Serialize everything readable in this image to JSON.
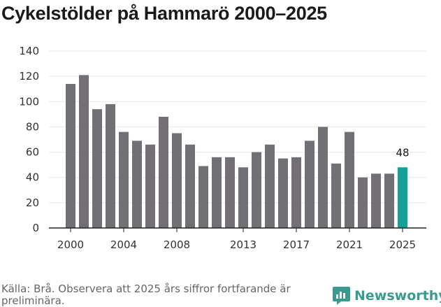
{
  "title": "Cykelstölder på Hammarö 2000–2025",
  "source": "Källa: Brå. Observera att 2025 års siffror fortfarande är preliminära.",
  "brand": {
    "name": "Newsworthy"
  },
  "colors": {
    "bar": "#727075",
    "highlight": "#14a197",
    "grid": "#e6e6e6",
    "axis": "#222222"
  },
  "chart_data": {
    "type": "bar",
    "title": "Cykelstölder på Hammarö 2000–2025",
    "xlabel": "",
    "ylabel": "",
    "ylim": [
      0,
      140
    ],
    "yticks": [
      0,
      20,
      40,
      60,
      80,
      100,
      120,
      140
    ],
    "xticks": [
      "2000",
      "2004",
      "2008",
      "2013",
      "2017",
      "2021",
      "2025"
    ],
    "categories": [
      "2000",
      "2001",
      "2002",
      "2003",
      "2004",
      "2005",
      "2006",
      "2007",
      "2008",
      "2009",
      "2010",
      "2011",
      "2012",
      "2013",
      "2014",
      "2015",
      "2016",
      "2017",
      "2018",
      "2019",
      "2020",
      "2021",
      "2022",
      "2023",
      "2024",
      "2025"
    ],
    "values": [
      114,
      121,
      94,
      98,
      76,
      69,
      66,
      88,
      75,
      66,
      49,
      56,
      56,
      48,
      60,
      66,
      55,
      56,
      69,
      80,
      51,
      76,
      40,
      43,
      43,
      48
    ],
    "highlight": "2025",
    "data_labels": [
      {
        "category": "2025",
        "text": "48"
      }
    ],
    "grid": true
  }
}
